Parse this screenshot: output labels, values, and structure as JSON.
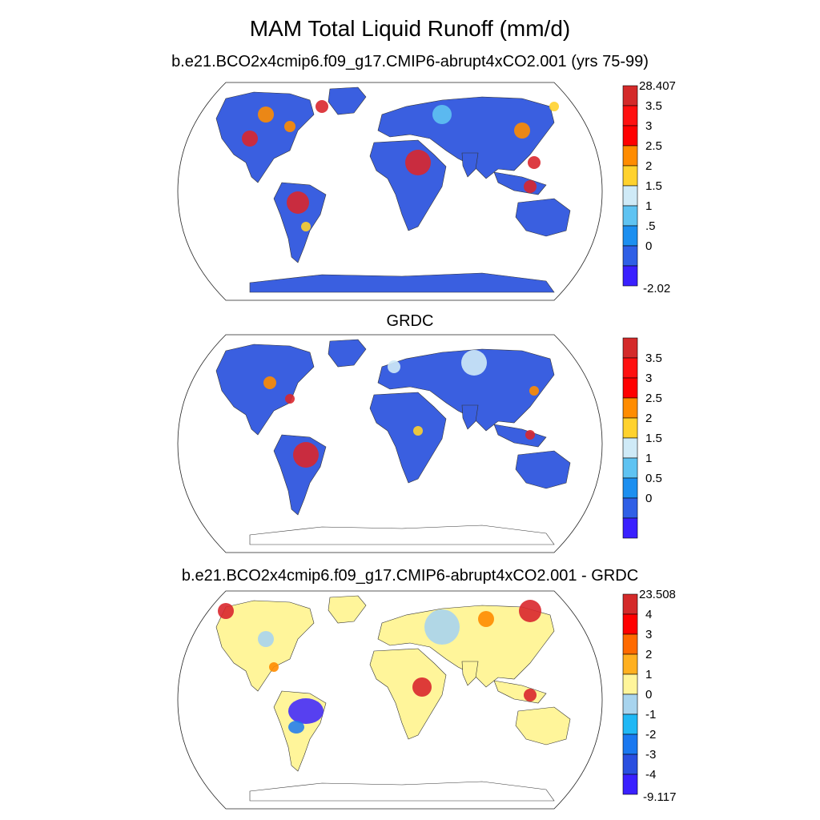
{
  "title": "MAM Total Liquid Runoff (mm/d)",
  "chart_data": [
    {
      "type": "heatmap",
      "subtitle": "b.e21.BCO2x4cmip6.f09_g17.CMIP6-abrupt4xCO2.001 (yrs 75-99)",
      "colorbar": {
        "top_label": "28.407",
        "labels": [
          "3.5",
          "3",
          "2.5",
          "2",
          "1.5",
          "1",
          ".5",
          "0"
        ],
        "bottom_label": "-2.02",
        "colors": [
          "#d42a2a",
          "#ff1010",
          "#ff0000",
          "#ff8c00",
          "#ffd22e",
          "#cfeaf7",
          "#5fc3f2",
          "#1c8ff0",
          "#2f5fe6",
          "#3a20ff"
        ]
      }
    },
    {
      "type": "heatmap",
      "subtitle": "GRDC",
      "colorbar": {
        "top_label": "",
        "labels": [
          "3.5",
          "3",
          "2.5",
          "2",
          "1.5",
          "1",
          "0.5",
          "0"
        ],
        "bottom_label": "",
        "colors": [
          "#d42a2a",
          "#ff1010",
          "#ff0000",
          "#ff8c00",
          "#ffd22e",
          "#cfeaf7",
          "#5fc3f2",
          "#1c8ff0",
          "#2f5fe6",
          "#3a20ff"
        ]
      }
    },
    {
      "type": "heatmap",
      "subtitle": "b.e21.BCO2x4cmip6.f09_g17.CMIP6-abrupt4xCO2.001 - GRDC",
      "colorbar": {
        "top_label": "23.508",
        "labels": [
          "4",
          "3",
          "2",
          "1",
          "0",
          "-1",
          "-2",
          "-3",
          "-4"
        ],
        "bottom_label": "-9.117",
        "colors": [
          "#d42a2a",
          "#ff0000",
          "#ff6a00",
          "#ffb020",
          "#fff59a",
          "#a8d4ee",
          "#20b8f5",
          "#1a78f0",
          "#2a4fe0",
          "#3a20ff"
        ]
      }
    }
  ]
}
